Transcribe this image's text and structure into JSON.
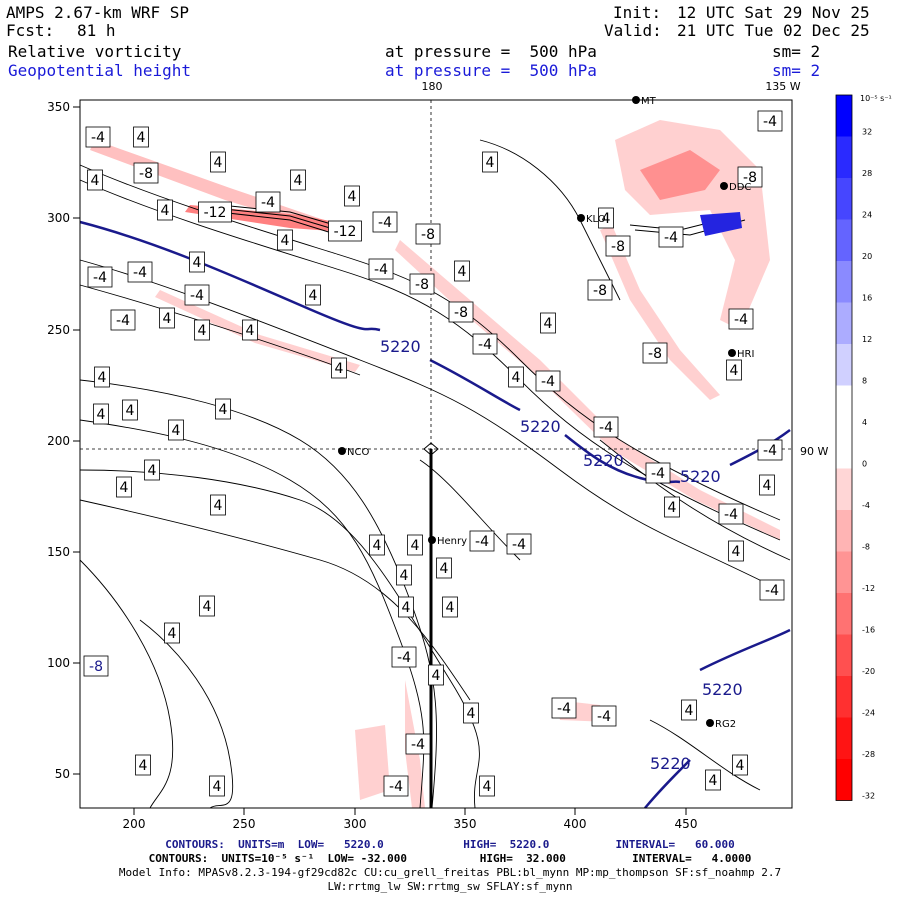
{
  "header": {
    "model": "AMPS 2.67-km WRF SP",
    "fcst_label": "Fcst:",
    "fcst_value": "81 h",
    "init_label": "Init:",
    "init_value": "12 UTC Sat 29 Nov 25",
    "valid_label": "Valid:",
    "valid_value": "21 UTC Tue 02 Dec 25",
    "field1": "Relative vorticity",
    "field2": "Geopotential height",
    "pressure1": "at pressure =  500 hPa",
    "pressure2": "at pressure =  500 hPa",
    "sm1": "sm= 2",
    "sm2": "sm= 2"
  },
  "map": {
    "x_ticks": [
      "200",
      "250",
      "300",
      "350",
      "400",
      "450"
    ],
    "y_ticks": [
      "350",
      "300",
      "250",
      "200",
      "150",
      "100",
      "50"
    ],
    "meridian_180": "180",
    "meridian_135w": "135 W",
    "meridian_90w": "90 W",
    "stations": [
      {
        "name": "NCO"
      },
      {
        "name": "Henry"
      },
      {
        "name": "KLO"
      },
      {
        "name": "HRI"
      },
      {
        "name": "RG2"
      },
      {
        "name": "MT"
      },
      {
        "name": "DDC"
      }
    ],
    "height_contour_value": "5220",
    "vort_labels_pos": "4",
    "vort_labels_neg4": "-4",
    "vort_labels_neg8": "-8",
    "vort_labels_neg12": "-12"
  },
  "colorbar": {
    "unit": "10⁻⁵ s⁻¹",
    "levels": [
      "32",
      "28",
      "24",
      "20",
      "16",
      "12",
      "8",
      "4",
      "0",
      "-4",
      "-8",
      "-12",
      "-16",
      "-20",
      "-24",
      "-28",
      "-32"
    ],
    "colors": [
      "#0000ff",
      "#2a2aff",
      "#4646ff",
      "#6464ff",
      "#8a8aff",
      "#acacff",
      "#d0d0ff",
      "#ffffff",
      "#ffffff",
      "#ffd6d6",
      "#ffb4b4",
      "#ff9494",
      "#ff7272",
      "#ff5050",
      "#ff3030",
      "#ff1414",
      "#ff0000"
    ]
  },
  "footer": {
    "line1": "CONTOURS:  UNITS=m  LOW=   5220.0            HIGH=  5220.0          INTERVAL=   60.000",
    "line2": "CONTOURS:  UNITS=10⁻⁵ s⁻¹  LOW= -32.000           HIGH=  32.000          INTERVAL=   4.0000",
    "line3": "Model Info: MPASv8.2.3-194-gf29cd82c CU:cu_grell_freitas PBL:bl_mynn MP:mp_thompson SF:sf_noahmp 2.7",
    "line4": "LW:rrtmg_lw SW:rrtmg_sw SFLAY:sf_mynn"
  }
}
